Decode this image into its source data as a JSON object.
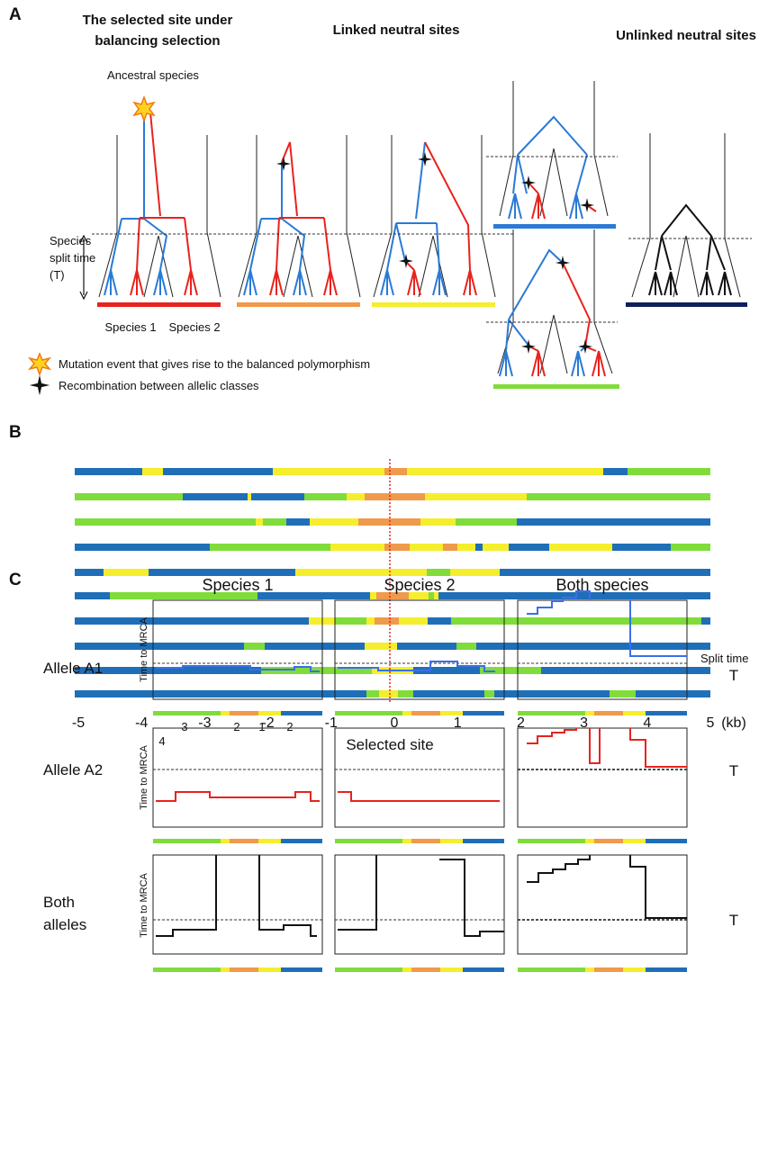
{
  "panel_a": {
    "label": "A",
    "headers": [
      [
        "The selected site under",
        "balancing selection"
      ],
      "Linked neutral sites",
      "Unlinked neutral sites"
    ],
    "ancestral": "Ancestral species",
    "split_label": [
      "Species",
      "split time",
      "(T)"
    ],
    "species": [
      "Species 1",
      "Species 2"
    ],
    "legend": [
      "Mutation event that gives rise to the balanced polymorphism",
      "Recombination between allelic classes"
    ]
  },
  "panel_b": {
    "label": "B",
    "xlim": [
      -5,
      5
    ],
    "xticks": [
      -5,
      -4,
      -3,
      -2,
      -1,
      0,
      1,
      2,
      3,
      4,
      5
    ],
    "unit": "(kb)",
    "xlabel": "Selected site"
  },
  "panel_c": {
    "label": "C",
    "columns": [
      "Species 1",
      "Species 2",
      "Both species"
    ],
    "rows": [
      "Allele A1",
      "Allele A2",
      [
        "Both",
        "alleles"
      ]
    ],
    "y_label": "Time to MRCA",
    "split_time": "Split time",
    "t": "T",
    "segment_numbers": [
      "3",
      "2",
      "1",
      "2",
      "4"
    ]
  }
}
